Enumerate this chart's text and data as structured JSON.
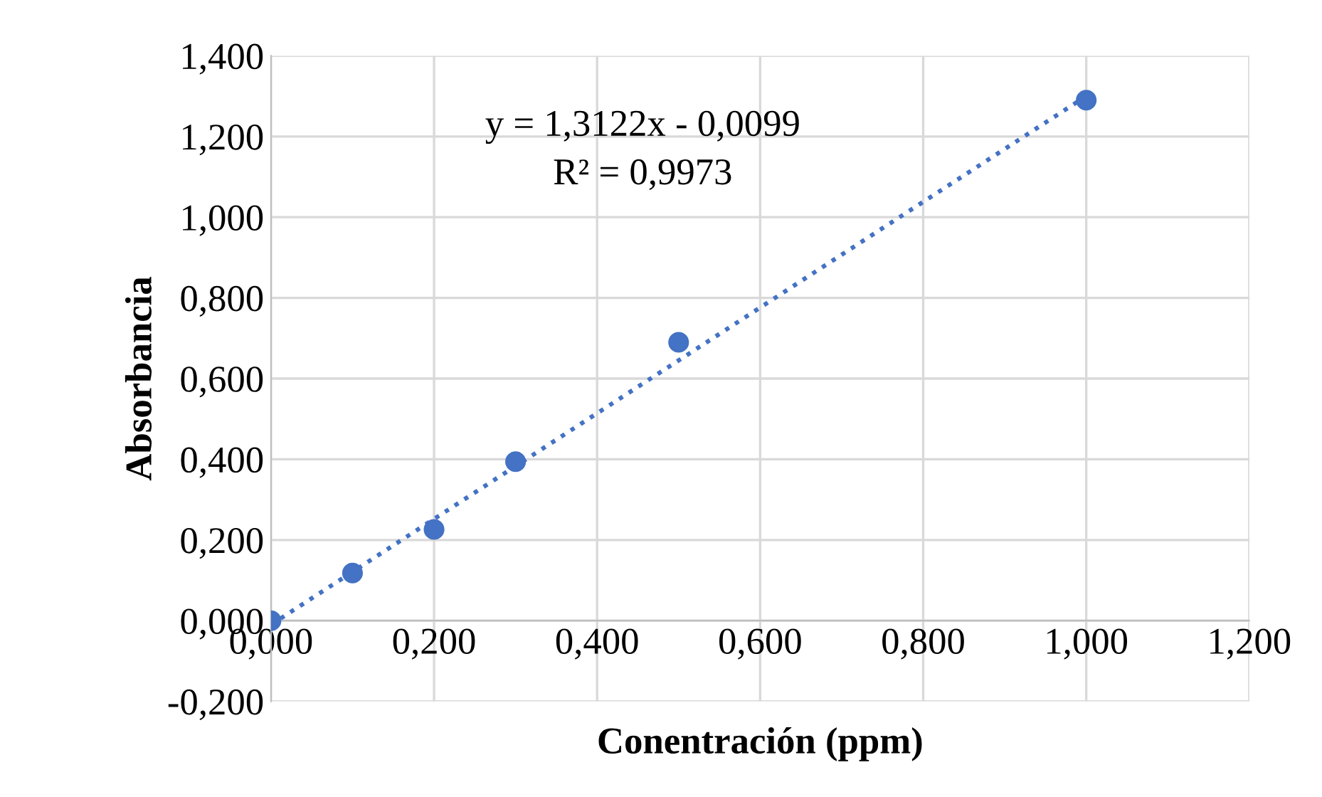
{
  "chart_data": {
    "type": "scatter",
    "xlabel": "Conentración (ppm)",
    "ylabel": "Absorbancia",
    "series": [
      {
        "color": "#4472c4",
        "marker": "circle",
        "x": [
          0,
          0.1,
          0.2,
          0.3,
          0.5,
          1.0
        ],
        "values": [
          0.0,
          0.118,
          0.226,
          0.394,
          0.69,
          1.29
        ]
      },
      {
        "type": "line",
        "color": "#4472c4",
        "line_style": "dotted",
        "marker": "none",
        "x": [
          0,
          1.0
        ],
        "values": [
          -0.01,
          1.3
        ]
      }
    ],
    "xlim": [
      0,
      1.2
    ],
    "xticks": [
      {
        "value": 0,
        "label": "0,000"
      },
      {
        "value": 0.2,
        "label": "0,200"
      },
      {
        "value": 0.4,
        "label": "0,400"
      },
      {
        "value": 0.6,
        "label": "0,600"
      },
      {
        "value": 0.8,
        "label": "0,800"
      },
      {
        "value": 1.0,
        "label": "1,000"
      },
      {
        "value": 1.2,
        "label": "1,200"
      }
    ],
    "ylim": [
      -0.2,
      1.4
    ],
    "yticks": [
      {
        "value": -0.2,
        "label": "-0,200"
      },
      {
        "value": 0,
        "label": "0,000"
      },
      {
        "value": 0.2,
        "label": "0,200"
      },
      {
        "value": 0.4,
        "label": "0,400"
      },
      {
        "value": 0.6,
        "label": "0,600"
      },
      {
        "value": 0.8,
        "label": "0,800"
      },
      {
        "value": 1.0,
        "label": "1,000"
      },
      {
        "value": 1.2,
        "label": "1,200"
      },
      {
        "value": 1.4,
        "label": "1,400"
      }
    ],
    "grid": true,
    "annotations": [
      "y = 1,3122x - 0,0099",
      "R² = 0,9973"
    ]
  }
}
